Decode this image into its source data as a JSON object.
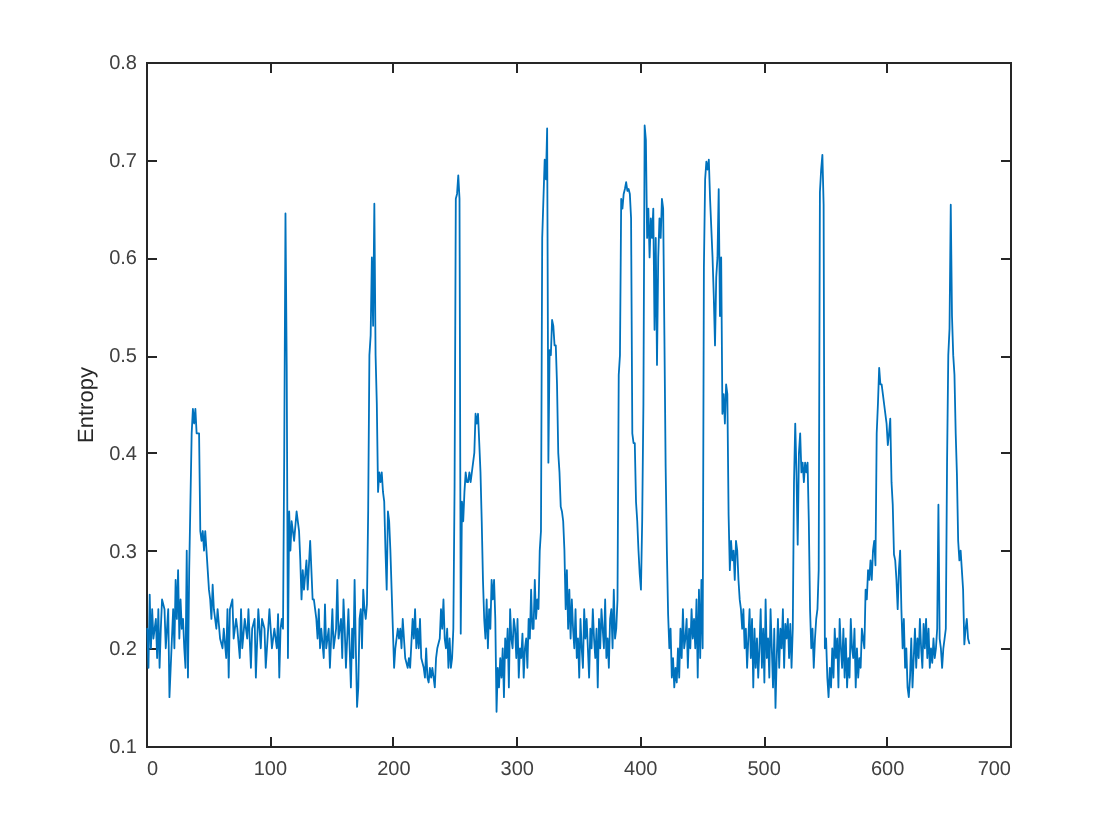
{
  "chart_data": {
    "type": "line",
    "ylabel": "Entropy",
    "x": [
      1,
      2,
      3,
      4,
      5,
      6,
      8,
      9,
      10,
      11,
      12,
      13,
      15,
      16,
      17,
      18,
      19,
      20,
      22,
      23,
      24,
      25,
      26,
      27,
      28,
      29,
      30,
      31,
      32,
      33,
      34,
      35,
      37,
      38,
      39,
      40,
      41,
      43,
      44,
      45,
      46,
      47,
      48,
      50,
      51,
      52,
      53,
      54,
      55,
      57,
      58,
      60,
      62,
      63,
      65,
      66,
      67,
      68,
      70,
      71,
      73,
      74,
      76,
      77,
      78,
      80,
      82,
      83,
      85,
      86,
      88,
      89,
      91,
      93,
      94,
      96,
      97,
      99,
      100,
      102,
      104,
      106,
      107,
      108,
      109,
      110,
      111,
      112,
      113,
      114,
      115,
      116,
      117,
      118,
      120,
      122,
      124,
      125,
      126,
      127,
      128,
      130,
      131,
      133,
      134,
      135,
      136,
      138,
      139,
      140,
      141,
      142,
      144,
      145,
      146,
      148,
      149,
      150,
      151,
      152,
      154,
      155,
      156,
      158,
      159,
      160,
      161,
      162,
      164,
      165,
      166,
      167,
      168,
      169,
      170,
      171,
      172,
      173,
      174,
      175,
      176,
      177,
      178,
      179,
      180,
      181,
      182,
      183,
      184,
      185,
      186,
      187,
      188,
      189,
      190,
      191,
      192,
      193,
      194,
      195,
      196,
      197,
      198,
      199,
      200,
      201,
      202,
      204,
      205,
      206,
      207,
      208,
      209,
      210,
      212,
      213,
      214,
      216,
      217,
      218,
      219,
      220,
      221,
      222,
      223,
      225,
      226,
      227,
      228,
      229,
      230,
      231,
      232,
      234,
      235,
      236,
      238,
      239,
      240,
      241,
      242,
      243,
      244,
      245,
      246,
      247,
      248,
      249,
      250,
      251,
      252,
      253,
      254,
      255,
      256,
      257,
      258,
      259,
      260,
      261,
      262,
      263,
      264,
      265,
      266,
      267,
      268,
      269,
      270,
      271,
      272,
      273,
      274,
      275,
      276,
      277,
      278,
      279,
      280,
      281,
      282,
      283,
      284,
      285,
      286,
      287,
      288,
      289,
      290,
      291,
      292,
      293,
      294,
      295,
      296,
      297,
      298,
      299,
      300,
      301,
      302,
      303,
      304,
      305,
      306,
      307,
      308,
      309,
      310,
      311,
      312,
      313,
      314,
      315,
      316,
      317,
      318,
      319,
      320,
      321,
      322,
      323,
      324,
      325,
      326,
      327,
      328,
      329,
      330,
      331,
      332,
      333,
      334,
      335,
      336,
      337,
      338,
      339,
      340,
      341,
      342,
      343,
      344,
      345,
      346,
      347,
      348,
      349,
      350,
      351,
      352,
      353,
      354,
      355,
      356,
      357,
      358,
      359,
      360,
      361,
      362,
      363,
      364,
      365,
      366,
      367,
      368,
      369,
      370,
      371,
      372,
      373,
      374,
      375,
      376,
      377,
      378,
      379,
      380,
      381,
      382,
      383,
      384,
      385,
      386,
      387,
      388,
      389,
      390,
      391,
      392,
      393,
      394,
      395,
      396,
      397,
      398,
      399,
      400,
      401,
      402,
      403,
      404,
      405,
      406,
      407,
      408,
      409,
      410,
      411,
      412,
      413,
      414,
      415,
      416,
      417,
      418,
      419,
      420,
      421,
      422,
      423,
      424,
      425,
      426,
      427,
      428,
      429,
      430,
      431,
      432,
      433,
      434,
      435,
      436,
      437,
      438,
      439,
      440,
      441,
      442,
      443,
      444,
      445,
      446,
      447,
      448,
      449,
      450,
      451,
      452,
      453,
      454,
      455,
      456,
      457,
      458,
      459,
      460,
      461,
      462,
      463,
      464,
      465,
      466,
      467,
      468,
      469,
      470,
      471,
      472,
      473,
      474,
      475,
      476,
      477,
      478,
      479,
      480,
      481,
      482,
      483,
      484,
      485,
      486,
      487,
      488,
      489,
      490,
      491,
      492,
      493,
      494,
      495,
      496,
      497,
      498,
      499,
      500,
      501,
      502,
      503,
      504,
      505,
      506,
      507,
      508,
      509,
      510,
      511,
      512,
      513,
      514,
      515,
      516,
      517,
      518,
      519,
      520,
      521,
      522,
      523,
      524,
      525,
      526,
      527,
      528,
      529,
      530,
      531,
      532,
      533,
      534,
      535,
      536,
      537,
      538,
      539,
      540,
      541,
      542,
      543,
      544,
      545,
      546,
      547,
      548,
      549,
      550,
      551,
      552,
      553,
      554,
      555,
      556,
      557,
      558,
      559,
      560,
      561,
      562,
      563,
      564,
      565,
      566,
      567,
      568,
      569,
      570,
      571,
      572,
      573,
      574,
      575,
      576,
      577,
      578,
      579,
      580,
      581,
      582,
      583,
      584,
      585,
      586,
      587,
      588,
      589,
      590,
      591,
      592,
      593,
      594,
      595,
      596,
      597,
      598,
      599,
      600,
      601,
      602,
      603,
      604,
      605,
      606,
      607,
      608,
      609,
      610,
      611,
      612,
      613,
      614,
      615,
      616,
      617,
      618,
      619,
      620,
      621,
      622,
      623,
      624,
      625,
      626,
      627,
      628,
      629,
      630,
      631,
      632,
      633,
      634,
      635,
      636,
      637,
      638,
      639,
      640,
      641,
      642,
      643,
      644,
      645,
      646,
      647,
      648,
      649,
      650,
      651,
      652,
      653,
      654,
      655,
      656,
      657,
      658,
      659,
      660,
      661,
      662,
      663,
      664,
      665,
      666,
      667
    ],
    "series": [
      {
        "color": "#0072bd",
        "values": [
          0.22,
          0.18,
          0.255,
          0.2,
          0.24,
          0.21,
          0.23,
          0.19,
          0.24,
          0.18,
          0.22,
          0.25,
          0.24,
          0.2,
          0.22,
          0.24,
          0.15,
          0.18,
          0.24,
          0.2,
          0.27,
          0.23,
          0.28,
          0.21,
          0.25,
          0.22,
          0.23,
          0.2,
          0.18,
          0.3,
          0.17,
          0.28,
          0.42,
          0.445,
          0.43,
          0.445,
          0.42,
          0.42,
          0.32,
          0.31,
          0.32,
          0.3,
          0.32,
          0.28,
          0.26,
          0.25,
          0.23,
          0.265,
          0.24,
          0.22,
          0.24,
          0.21,
          0.2,
          0.22,
          0.19,
          0.24,
          0.17,
          0.24,
          0.25,
          0.21,
          0.23,
          0.22,
          0.19,
          0.24,
          0.2,
          0.23,
          0.21,
          0.24,
          0.18,
          0.22,
          0.23,
          0.17,
          0.24,
          0.2,
          0.23,
          0.22,
          0.18,
          0.22,
          0.24,
          0.2,
          0.22,
          0.2,
          0.235,
          0.17,
          0.22,
          0.23,
          0.22,
          0.4,
          0.645,
          0.49,
          0.19,
          0.34,
          0.3,
          0.33,
          0.31,
          0.34,
          0.32,
          0.29,
          0.25,
          0.28,
          0.26,
          0.29,
          0.26,
          0.31,
          0.28,
          0.25,
          0.25,
          0.23,
          0.21,
          0.24,
          0.2,
          0.22,
          0.19,
          0.245,
          0.2,
          0.22,
          0.18,
          0.21,
          0.24,
          0.2,
          0.22,
          0.27,
          0.21,
          0.23,
          0.19,
          0.25,
          0.22,
          0.18,
          0.24,
          0.2,
          0.16,
          0.22,
          0.19,
          0.27,
          0.2,
          0.14,
          0.16,
          0.23,
          0.24,
          0.2,
          0.26,
          0.24,
          0.23,
          0.245,
          0.34,
          0.5,
          0.52,
          0.6,
          0.53,
          0.655,
          0.5,
          0.45,
          0.36,
          0.38,
          0.37,
          0.38,
          0.36,
          0.35,
          0.3,
          0.26,
          0.34,
          0.33,
          0.3,
          0.26,
          0.22,
          0.18,
          0.2,
          0.22,
          0.21,
          0.22,
          0.2,
          0.23,
          0.21,
          0.19,
          0.18,
          0.19,
          0.18,
          0.23,
          0.21,
          0.24,
          0.2,
          0.22,
          0.2,
          0.23,
          0.19,
          0.18,
          0.17,
          0.2,
          0.17,
          0.165,
          0.18,
          0.17,
          0.18,
          0.16,
          0.19,
          0.2,
          0.21,
          0.24,
          0.22,
          0.25,
          0.21,
          0.2,
          0.22,
          0.18,
          0.21,
          0.18,
          0.19,
          0.22,
          0.365,
          0.66,
          0.665,
          0.684,
          0.66,
          0.215,
          0.35,
          0.33,
          0.36,
          0.38,
          0.37,
          0.37,
          0.38,
          0.37,
          0.38,
          0.39,
          0.4,
          0.44,
          0.43,
          0.44,
          0.41,
          0.38,
          0.33,
          0.27,
          0.23,
          0.21,
          0.25,
          0.2,
          0.24,
          0.22,
          0.27,
          0.25,
          0.27,
          0.23,
          0.135,
          0.18,
          0.16,
          0.19,
          0.17,
          0.2,
          0.15,
          0.21,
          0.19,
          0.22,
          0.16,
          0.24,
          0.21,
          0.2,
          0.23,
          0.22,
          0.19,
          0.23,
          0.17,
          0.2,
          0.19,
          0.215,
          0.17,
          0.2,
          0.21,
          0.18,
          0.23,
          0.21,
          0.26,
          0.22,
          0.22,
          0.27,
          0.23,
          0.25,
          0.24,
          0.3,
          0.32,
          0.62,
          0.66,
          0.7,
          0.68,
          0.732,
          0.39,
          0.505,
          0.5,
          0.536,
          0.53,
          0.51,
          0.51,
          0.47,
          0.4,
          0.38,
          0.345,
          0.34,
          0.33,
          0.3,
          0.24,
          0.28,
          0.22,
          0.26,
          0.21,
          0.25,
          0.22,
          0.2,
          0.24,
          0.19,
          0.21,
          0.17,
          0.23,
          0.2,
          0.18,
          0.24,
          0.21,
          0.23,
          0.2,
          0.17,
          0.22,
          0.2,
          0.24,
          0.21,
          0.19,
          0.22,
          0.16,
          0.23,
          0.2,
          0.24,
          0.22,
          0.2,
          0.25,
          0.19,
          0.21,
          0.18,
          0.23,
          0.24,
          0.2,
          0.26,
          0.21,
          0.22,
          0.25,
          0.48,
          0.5,
          0.66,
          0.65,
          0.665,
          0.67,
          0.677,
          0.668,
          0.67,
          0.665,
          0.64,
          0.42,
          0.41,
          0.41,
          0.35,
          0.33,
          0.3,
          0.276,
          0.26,
          0.33,
          0.45,
          0.735,
          0.72,
          0.62,
          0.65,
          0.6,
          0.64,
          0.62,
          0.65,
          0.526,
          0.62,
          0.49,
          0.6,
          0.64,
          0.62,
          0.66,
          0.65,
          0.52,
          0.386,
          0.3,
          0.235,
          0.2,
          0.22,
          0.17,
          0.19,
          0.16,
          0.18,
          0.165,
          0.2,
          0.17,
          0.22,
          0.19,
          0.24,
          0.2,
          0.21,
          0.23,
          0.18,
          0.22,
          0.2,
          0.24,
          0.21,
          0.23,
          0.2,
          0.25,
          0.17,
          0.26,
          0.19,
          0.27,
          0.2,
          0.59,
          0.68,
          0.698,
          0.69,
          0.7,
          0.66,
          0.63,
          0.6,
          0.56,
          0.51,
          0.58,
          0.6,
          0.67,
          0.54,
          0.6,
          0.44,
          0.46,
          0.43,
          0.47,
          0.46,
          0.337,
          0.28,
          0.31,
          0.29,
          0.3,
          0.27,
          0.31,
          0.3,
          0.27,
          0.25,
          0.24,
          0.22,
          0.24,
          0.2,
          0.22,
          0.18,
          0.21,
          0.24,
          0.19,
          0.23,
          0.16,
          0.22,
          0.18,
          0.21,
          0.17,
          0.2,
          0.24,
          0.18,
          0.22,
          0.165,
          0.25,
          0.19,
          0.21,
          0.17,
          0.24,
          0.2,
          0.16,
          0.22,
          0.139,
          0.19,
          0.23,
          0.18,
          0.22,
          0.2,
          0.24,
          0.18,
          0.225,
          0.21,
          0.23,
          0.19,
          0.225,
          0.18,
          0.22,
          0.37,
          0.43,
          0.38,
          0.306,
          0.4,
          0.42,
          0.38,
          0.39,
          0.37,
          0.39,
          0.38,
          0.39,
          0.33,
          0.24,
          0.2,
          0.22,
          0.18,
          0.21,
          0.23,
          0.24,
          0.28,
          0.667,
          0.69,
          0.705,
          0.654,
          0.2,
          0.21,
          0.17,
          0.15,
          0.18,
          0.16,
          0.2,
          0.17,
          0.22,
          0.19,
          0.21,
          0.16,
          0.23,
          0.2,
          0.18,
          0.22,
          0.17,
          0.21,
          0.16,
          0.19,
          0.17,
          0.23,
          0.2,
          0.19,
          0.22,
          0.16,
          0.2,
          0.17,
          0.19,
          0.18,
          0.22,
          0.21,
          0.2,
          0.26,
          0.25,
          0.28,
          0.27,
          0.29,
          0.27,
          0.3,
          0.31,
          0.285,
          0.42,
          0.45,
          0.487,
          0.47,
          0.47,
          0.46,
          0.45,
          0.44,
          0.43,
          0.408,
          0.42,
          0.435,
          0.37,
          0.347,
          0.296,
          0.29,
          0.27,
          0.24,
          0.28,
          0.3,
          0.24,
          0.2,
          0.23,
          0.18,
          0.2,
          0.16,
          0.15,
          0.17,
          0.21,
          0.16,
          0.19,
          0.22,
          0.18,
          0.21,
          0.19,
          0.23,
          0.2,
          0.18,
          0.225,
          0.2,
          0.23,
          0.19,
          0.22,
          0.18,
          0.2,
          0.185,
          0.21,
          0.19,
          0.2,
          0.22,
          0.347,
          0.21,
          0.2,
          0.18,
          0.2,
          0.21,
          0.22,
          0.39,
          0.5,
          0.527,
          0.654,
          0.54,
          0.5,
          0.48,
          0.42,
          0.378,
          0.31,
          0.29,
          0.3,
          0.28,
          0.26,
          0.204,
          0.22,
          0.23,
          0.21,
          0.205
        ]
      }
    ],
    "xlim": [
      0,
      700
    ],
    "ylim": [
      0.1,
      0.8
    ],
    "xticks": [
      0,
      100,
      200,
      300,
      400,
      500,
      600,
      700
    ],
    "yticks": [
      0.1,
      0.2,
      0.3,
      0.4,
      0.5,
      0.6,
      0.7,
      0.8
    ],
    "line_style": "solid"
  }
}
